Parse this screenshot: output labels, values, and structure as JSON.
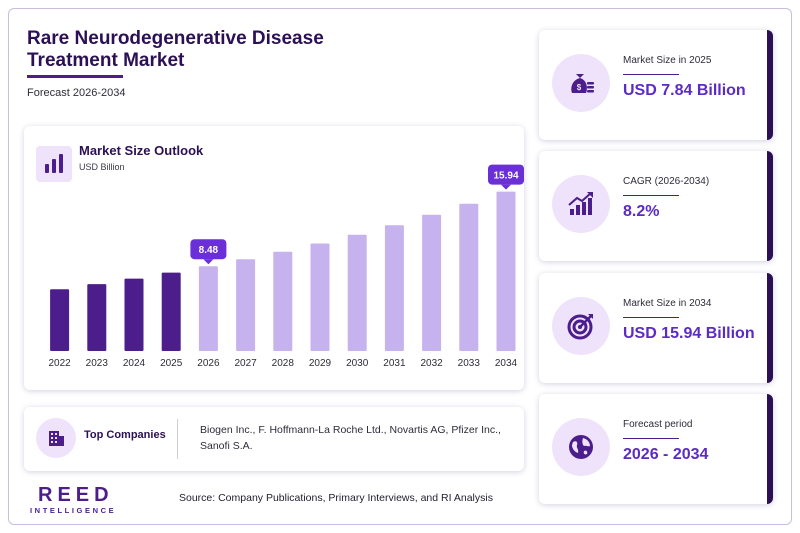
{
  "header": {
    "title": "Rare Neurodegenerative Disease Treatment Market",
    "subtitle": "Forecast 2026-2034"
  },
  "chart_panel": {
    "title": "Market Size Outlook",
    "unit": "USD Billion",
    "icon": "bar-chart-icon"
  },
  "chart_data": {
    "type": "bar",
    "categories": [
      "2022",
      "2023",
      "2024",
      "2025",
      "2026",
      "2027",
      "2028",
      "2029",
      "2030",
      "2031",
      "2032",
      "2033",
      "2034"
    ],
    "values": [
      6.18,
      6.69,
      7.24,
      7.84,
      8.48,
      9.18,
      9.93,
      10.75,
      11.63,
      12.58,
      13.62,
      14.73,
      15.94
    ],
    "ylabel": "USD Billion",
    "ylim": [
      0,
      17
    ],
    "highlighted": [
      {
        "category": "2026",
        "label": "8.48"
      },
      {
        "category": "2034",
        "label": "15.94"
      }
    ],
    "colors": {
      "historical": "#4b1e8c",
      "forecast": "#c6b3ee",
      "callout": "#6a2fd6"
    },
    "forecast_start": "2026",
    "grid": false
  },
  "companies": {
    "label": "Top Companies",
    "list": "Biogen Inc., F. Hoffmann-La Roche Ltd., Novartis AG, Pfizer Inc., Sanofi S.A.",
    "icon": "building-icon"
  },
  "stats": [
    {
      "label": "Market Size in 2025",
      "value": "USD 7.84 Billion",
      "icon": "money-bag-icon"
    },
    {
      "label": "CAGR (2026-2034)",
      "value": "8.2%",
      "icon": "growth-chart-icon"
    },
    {
      "label": "Market Size in 2034",
      "value": "USD 15.94 Billion",
      "icon": "target-icon"
    },
    {
      "label": "Forecast period",
      "value": "2026 - 2034",
      "icon": "globe-icon"
    }
  ],
  "brand": {
    "name": "REED",
    "tagline": "INTELLIGENCE"
  },
  "footer": {
    "source": "Source: Company Publications, Primary Interviews, and RI Analysis"
  },
  "theme": {
    "accent": "#4b1e8c",
    "accent_light": "#efe3fb",
    "value_color": "#5b2bc4"
  }
}
